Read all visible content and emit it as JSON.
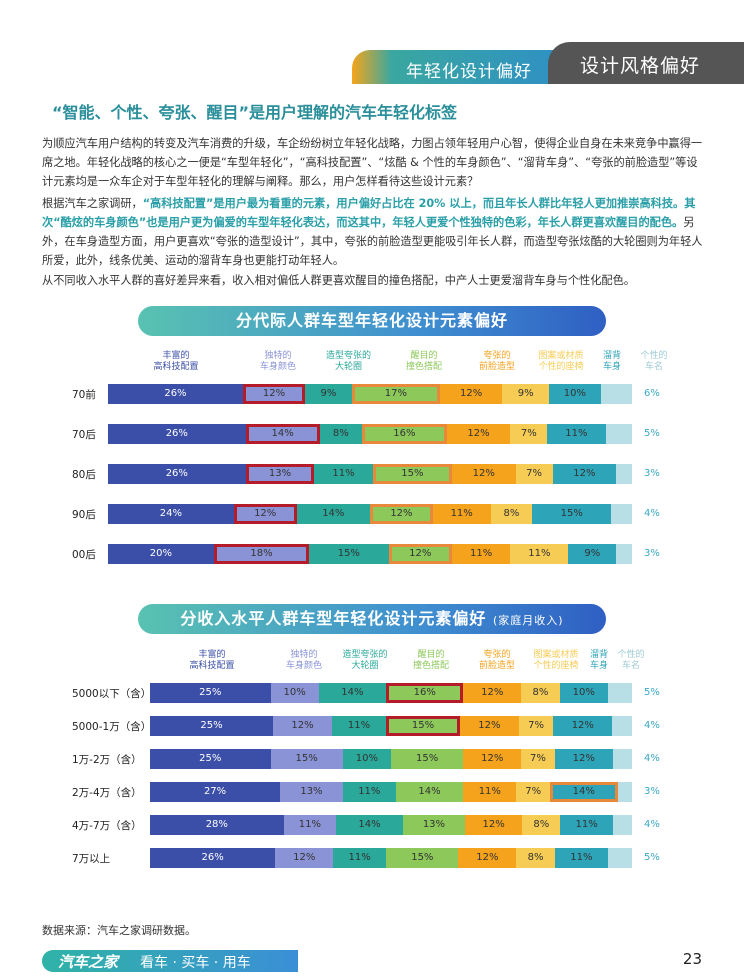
{
  "header": {
    "section": "年轻化设计偏好",
    "category": "设计风格偏好"
  },
  "title": "“智能、个性、夸张、醒目”是用户理解的汽车年轻化标签",
  "paragraphs": {
    "p1": "为顺应汽车用户结构的转变及汽车消费的升级，车企纷纷树立年轻化战略，力图占领年轻用户心智，使得企业自身在未来竞争中赢得一席之地。年轻化战略的核心之一便是“车型年轻化”，“高科技配置”、“炫酷 & 个性的车身颜色”、“溜背车身”、“夸张的前脸造型”等设计元素均是一众车企对于车型年轻化的理解与阐释。那么，用户怎样看待这些设计元素？",
    "p2a": "根据汽车之家调研，",
    "p2b": "“高科技配置”是用户最为看重的元素，用户偏好占比在 20% 以上，而且年长人群比年轻人更加推崇高科技。其次“酷炫的车身颜色”也是用户更为偏爱的车型年轻化表达，而这其中，年轻人更爱个性独特的色彩，年长人群更喜欢醒目的配色。",
    "p2c": "另外，在车身造型方面，用户更喜欢“夸张的造型设计”，其中，夸张的前脸造型更能吸引年长人群，而造型夸张炫酷的大轮圈则为年轻人所爱，此外，线条优美、运动的溜背车身也更能打动年轻人。",
    "p3": "从不同收入水平人群的喜好差异来看，收入相对偏低人群更喜欢醒目的撞色搭配，中产人士更爱溜背车身与个性化配色。"
  },
  "legend_items": [
    {
      "l1": "丰富的",
      "l2": "高科技配置",
      "color": "#3b4fa8"
    },
    {
      "l1": "独特的",
      "l2": "车身颜色",
      "color": "#8a93d6"
    },
    {
      "l1": "造型夸张的",
      "l2": "大轮圈",
      "color": "#2aa89a"
    },
    {
      "l1": "醒目的",
      "l2": "撞色搭配",
      "color": "#8cc85a"
    },
    {
      "l1": "夸张的",
      "l2": "前脸造型",
      "color": "#f5a21c"
    },
    {
      "l1": "图案或材质",
      "l2": "个性的座椅",
      "color": "#f6cc55"
    },
    {
      "l1": "溜背",
      "l2": "车身",
      "color": "#2ea4b8"
    },
    {
      "l1": "个性的",
      "l2": "车名",
      "color": "#b8dfe6"
    }
  ],
  "chart_data": [
    {
      "type": "bar",
      "stacked": true,
      "orientation": "horizontal",
      "title": "分代际人群车型年轻化设计元素偏好",
      "unit": "%",
      "categories": [
        "70前",
        "70后",
        "80后",
        "90后",
        "00后"
      ],
      "series": [
        {
          "name": "丰富的高科技配置",
          "values": [
            26,
            26,
            26,
            24,
            20
          ]
        },
        {
          "name": "独特的车身颜色",
          "values": [
            12,
            14,
            13,
            12,
            18
          ]
        },
        {
          "name": "造型夸张的大轮圈",
          "values": [
            9,
            8,
            11,
            14,
            15
          ]
        },
        {
          "name": "醒目的撞色搭配",
          "values": [
            17,
            16,
            15,
            12,
            12
          ]
        },
        {
          "name": "夸张的前脸造型",
          "values": [
            12,
            12,
            12,
            11,
            11
          ]
        },
        {
          "name": "图案或材质个性的座椅",
          "values": [
            9,
            7,
            7,
            8,
            11
          ]
        },
        {
          "name": "溜背车身",
          "values": [
            10,
            11,
            12,
            15,
            9
          ]
        },
        {
          "name": "个性的车名",
          "values": [
            6,
            5,
            3,
            4,
            3
          ]
        }
      ],
      "highlights_red": [
        [
          0,
          1
        ],
        [
          1,
          1
        ],
        [
          2,
          1
        ],
        [
          3,
          1
        ],
        [
          4,
          1
        ]
      ],
      "highlights_orange": [
        [
          0,
          3
        ],
        [
          1,
          3
        ],
        [
          2,
          3
        ],
        [
          3,
          3
        ],
        [
          4,
          3
        ]
      ]
    },
    {
      "type": "bar",
      "stacked": true,
      "orientation": "horizontal",
      "title": "分收入水平人群车型年轻化设计元素偏好",
      "subtitle": "(家庭月收入)",
      "unit": "%",
      "categories": [
        "5000以下（含）",
        "5000-1万（含）",
        "1万-2万（含）",
        "2万-4万（含）",
        "4万-7万（含）",
        "7万以上"
      ],
      "series": [
        {
          "name": "丰富的高科技配置",
          "values": [
            25,
            25,
            25,
            27,
            28,
            26
          ]
        },
        {
          "name": "独特的车身颜色",
          "values": [
            10,
            12,
            15,
            13,
            11,
            12
          ]
        },
        {
          "name": "造型夸张的大轮圈",
          "values": [
            14,
            11,
            10,
            11,
            14,
            11
          ]
        },
        {
          "name": "醒目的撞色搭配",
          "values": [
            16,
            15,
            15,
            14,
            13,
            15
          ]
        },
        {
          "name": "夸张的前脸造型",
          "values": [
            12,
            12,
            12,
            11,
            12,
            12
          ]
        },
        {
          "name": "图案或材质个性的座椅",
          "values": [
            8,
            7,
            7,
            7,
            8,
            8
          ]
        },
        {
          "name": "溜背车身",
          "values": [
            10,
            12,
            12,
            14,
            11,
            11
          ]
        },
        {
          "name": "个性的车名",
          "values": [
            5,
            4,
            4,
            3,
            4,
            5
          ]
        }
      ],
      "highlights_red": [
        [
          0,
          3
        ],
        [
          1,
          3
        ]
      ],
      "highlights_orange": [
        [
          3,
          6
        ]
      ]
    }
  ],
  "source": "数据来源：汽车之家调研数据。",
  "footer": {
    "brand": "汽车之家",
    "slogan": "看车 · 买车 · 用车",
    "page": "23"
  }
}
